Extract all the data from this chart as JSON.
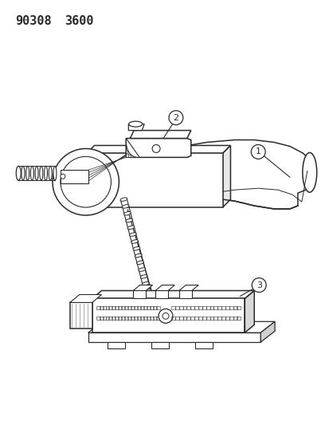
{
  "title_line1": "90308",
  "title_line2": "3600",
  "bg_color": "#ffffff",
  "line_color": "#2a2a2a",
  "figsize": [
    4.14,
    5.33
  ],
  "dpi": 100
}
